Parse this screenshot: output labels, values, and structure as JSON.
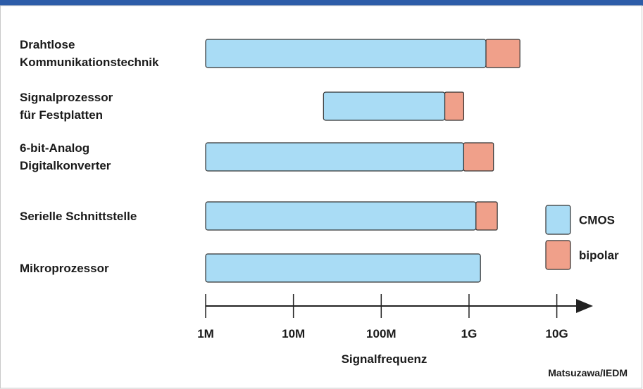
{
  "chart_data": {
    "type": "range-bar",
    "categories": [
      "Drahtlose\nKommunikationstechnik",
      "Signalprozessor\nfür Festplatten",
      "6-bit-Analog\nDigitalkonverter",
      "Serielle Schnittstelle",
      "Mikroprozessor"
    ],
    "series": [
      {
        "name": "CMOS",
        "color": "#a9dcf5",
        "low": [
          1000000,
          22000000,
          1000000,
          1000000,
          1000000
        ],
        "high": [
          1560000000,
          530000000,
          870000000,
          1200000000,
          1350000000
        ]
      },
      {
        "name": "bipolar",
        "color": "#f0a08a",
        "high": [
          3800000000,
          870000000,
          1900000000,
          2100000000,
          null
        ]
      }
    ],
    "x_scale": "log",
    "xlim": [
      1000000,
      24000000000
    ],
    "xticks": [
      {
        "value": 1000000,
        "label": "1M"
      },
      {
        "value": 10000000,
        "label": "10M"
      },
      {
        "value": 100000000,
        "label": "100M"
      },
      {
        "value": 1000000000,
        "label": "1G"
      },
      {
        "value": 10000000000,
        "label": "10G"
      }
    ],
    "x_label": "Signalfrequenz",
    "source": "Matsuzawa/IEDM"
  }
}
